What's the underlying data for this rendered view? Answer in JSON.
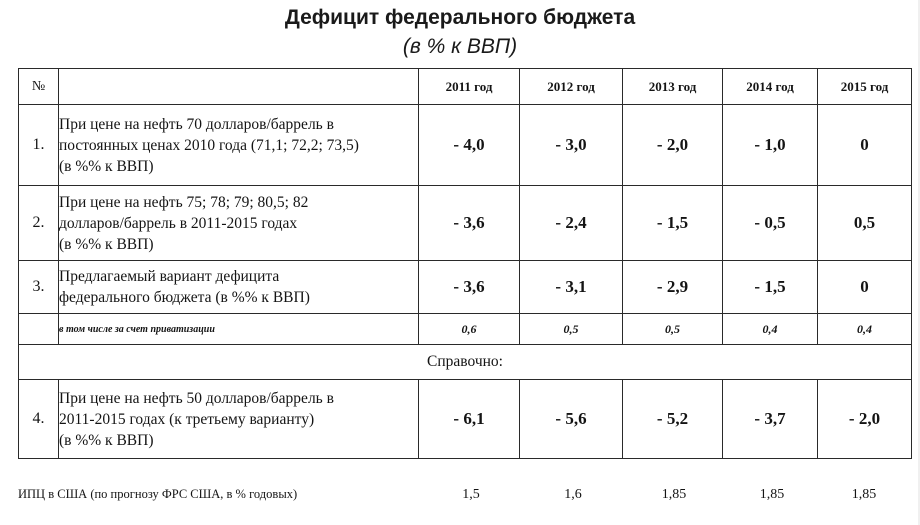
{
  "title": "Дефицит федерального бюджета",
  "subtitle": "(в % к ВВП)",
  "table": {
    "headers": {
      "num": "№",
      "desc": "",
      "years": [
        "2011 год",
        "2012 год",
        "2013 год",
        "2014 год",
        "2015 год"
      ]
    },
    "rows": [
      {
        "num": "1.",
        "desc_lines": [
          "При цене на нефть 70 долларов/баррель в",
          "постоянных ценах 2010 года (71,1; 72,2; 73,5)",
          "(в %% к ВВП)"
        ],
        "values": [
          "- 4,0",
          "- 3,0",
          "- 2,0",
          "- 1,0",
          "0"
        ]
      },
      {
        "num": "2.",
        "desc_lines": [
          "При цене на нефть 75; 78; 79; 80,5; 82",
          "долларов/баррель в 2011-2015 годах",
          "(в %% к ВВП)"
        ],
        "values": [
          "- 3,6",
          "-  2,4",
          "- 1,5",
          "- 0,5",
          "0,5"
        ]
      },
      {
        "num": "3.",
        "desc_lines": [
          "Предлагаемый вариант дефицита",
          "федерального бюджета (в %% к ВВП)"
        ],
        "values": [
          "- 3,6",
          "- 3,1",
          "- 2,9",
          "- 1,5",
          "0"
        ]
      }
    ],
    "sub_row": {
      "desc": "в том числе за счет приватизации",
      "values": [
        "0,6",
        "0,5",
        "0,5",
        "0,4",
        "0,4"
      ]
    },
    "reference_label": "Справочно:",
    "row4": {
      "num": "4.",
      "desc_lines": [
        "При цене на нефть 50 долларов/баррель  в",
        "2011-2015 годах (к третьему варианту)",
        "(в %% к ВВП)"
      ],
      "values": [
        "- 6,1",
        "- 5,6",
        "- 5,2",
        "- 3,7",
        "- 2,0"
      ]
    }
  },
  "footer": {
    "label": "ИПЦ в США (по прогнозу ФРС США, в % годовых)",
    "values": [
      "1,5",
      "1,6",
      "1,85",
      "1,85",
      "1,85"
    ]
  }
}
